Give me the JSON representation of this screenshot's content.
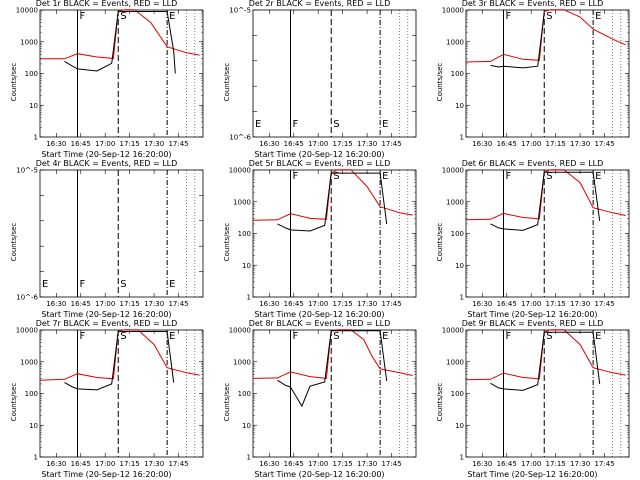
{
  "chart_data": [
    {
      "type": "line",
      "panel": "det1",
      "title": "Det 1r BLACK = Events, RED = LLD",
      "xlabel": "Start Time (20-Sep-12 16:20:00)",
      "ylabel": "Counts/sec",
      "yscale": "log",
      "ylim": [
        1,
        10000
      ],
      "xlim": [
        "16:20",
        "18:00"
      ],
      "xticks": [
        "16:30",
        "16:45",
        "17:00",
        "17:15",
        "17:30",
        "17:45"
      ],
      "yticks": [
        "1",
        "10",
        "100",
        "1000",
        "10000"
      ],
      "markers": [
        {
          "label": "F",
          "time": "16:43"
        },
        {
          "label": "S",
          "time": "17:08"
        },
        {
          "label": "E",
          "time": "17:38"
        }
      ],
      "series": [
        {
          "name": "LLD",
          "color": "#e00000",
          "x": [
            "16:20",
            "16:35",
            "16:43",
            "16:55",
            "17:05",
            "17:08",
            "17:12",
            "17:18",
            "17:28",
            "17:38",
            "17:50",
            "17:58"
          ],
          "values": [
            290,
            290,
            420,
            330,
            300,
            9000,
            14000,
            15000,
            4000,
            700,
            450,
            380
          ]
        },
        {
          "name": "Events",
          "color": "#000000",
          "x": [
            "16:35",
            "16:40",
            "16:43",
            "16:55",
            "17:04",
            "17:08",
            "17:38",
            "17:42",
            "17:43"
          ],
          "values": [
            240,
            170,
            140,
            120,
            210,
            9000,
            9000,
            500,
            100
          ]
        }
      ]
    },
    {
      "type": "line",
      "panel": "det2",
      "title": "Det 2r BLACK = Events, RED = LLD",
      "xlabel": "Start Time (20-Sep-12 16:20:00)",
      "ylabel": "Counts/sec",
      "yscale": "log",
      "ylim": [
        1e-06,
        1e-05
      ],
      "xticks": [
        "16:30",
        "16:45",
        "17:00",
        "17:15",
        "17:30",
        "17:45"
      ],
      "yticks": [
        "10^-6",
        "",
        "",
        "",
        "",
        "10^-5"
      ],
      "markers": [
        {
          "label": "E",
          "time": "16:20"
        },
        {
          "label": "F",
          "time": "16:43"
        },
        {
          "label": "S",
          "time": "17:08"
        },
        {
          "label": "E",
          "time": "17:38"
        }
      ],
      "series": []
    },
    {
      "type": "line",
      "panel": "det3",
      "title": "Det 3r BLACK = Events, RED = LLD",
      "xlabel": "",
      "ylabel": "Counts/sec",
      "yscale": "log",
      "ylim": [
        1,
        10000
      ],
      "xticks": [
        "16:30",
        "16:45",
        "17:00",
        "17:15",
        "17:30",
        "17:45"
      ],
      "yticks": [
        "1",
        "10",
        "100",
        "1000",
        "10000"
      ],
      "markers": [
        {
          "label": "F",
          "time": "16:43"
        },
        {
          "label": "S",
          "time": "17:08"
        },
        {
          "label": "E",
          "time": "17:38"
        }
      ],
      "series": [
        {
          "name": "LLD",
          "color": "#e00000",
          "x": [
            "16:20",
            "16:35",
            "16:43",
            "16:55",
            "17:05",
            "17:08",
            "17:12",
            "17:20",
            "17:30",
            "17:38",
            "17:50",
            "17:58"
          ],
          "values": [
            230,
            240,
            400,
            280,
            260,
            9000,
            12000,
            13000,
            6000,
            2500,
            1200,
            800
          ]
        },
        {
          "name": "Events",
          "color": "#000000",
          "x": [
            "16:35",
            "16:40",
            "16:43",
            "16:55",
            "17:04",
            "17:08"
          ],
          "values": [
            180,
            160,
            170,
            150,
            170,
            8000
          ]
        }
      ]
    },
    {
      "type": "line",
      "panel": "det4",
      "title": "Det 4r BLACK = Events, RED = LLD",
      "xlabel": "Start Time (20-Sep-12 16:20:00)",
      "ylabel": "Counts/sec",
      "yscale": "log",
      "ylim": [
        1e-06,
        1e-05
      ],
      "xticks": [
        "16:30",
        "16:45",
        "17:00",
        "17:15",
        "17:30",
        "17:45"
      ],
      "yticks": [
        "10^-6",
        "",
        "",
        "",
        "",
        "10^-5"
      ],
      "markers": [
        {
          "label": "E",
          "time": "16:20"
        },
        {
          "label": "F",
          "time": "16:43"
        },
        {
          "label": "S",
          "time": "17:08"
        },
        {
          "label": "E",
          "time": "17:38"
        }
      ],
      "series": []
    },
    {
      "type": "line",
      "panel": "det5",
      "title": "Det 5r BLACK = Events, RED = LLD",
      "xlabel": "Start Time (20-Sep-12 16:20:00)",
      "ylabel": "Counts/sec",
      "yscale": "log",
      "ylim": [
        1,
        10000
      ],
      "xticks": [
        "16:30",
        "16:45",
        "17:00",
        "17:15",
        "17:30",
        "17:45"
      ],
      "yticks": [
        "1",
        "10",
        "100",
        "1000",
        "10000"
      ],
      "markers": [
        {
          "label": "F",
          "time": "16:43"
        },
        {
          "label": "S",
          "time": "17:08"
        },
        {
          "label": "E",
          "time": "17:38"
        }
      ],
      "series": [
        {
          "name": "LLD",
          "color": "#e00000",
          "x": [
            "16:20",
            "16:35",
            "16:43",
            "16:55",
            "17:05",
            "17:08",
            "17:12",
            "17:20",
            "17:30",
            "17:38",
            "17:50",
            "17:58"
          ],
          "values": [
            260,
            270,
            420,
            300,
            280,
            8000,
            12000,
            13000,
            3000,
            700,
            450,
            380
          ]
        },
        {
          "name": "Events",
          "color": "#000000",
          "x": [
            "16:35",
            "16:40",
            "16:43",
            "16:55",
            "17:04",
            "17:08",
            "17:38",
            "17:42"
          ],
          "values": [
            200,
            150,
            130,
            120,
            180,
            8000,
            8000,
            200
          ]
        }
      ]
    },
    {
      "type": "line",
      "panel": "det6",
      "title": "Det 6r BLACK = Events, RED = LLD",
      "xlabel": "Start Time (20-Sep-12 16:20:00)",
      "ylabel": "Counts/sec",
      "yscale": "log",
      "ylim": [
        1,
        10000
      ],
      "xticks": [
        "16:30",
        "16:45",
        "17:00",
        "17:15",
        "17:30",
        "17:45"
      ],
      "yticks": [
        "1",
        "10",
        "100",
        "1000",
        "10000"
      ],
      "markers": [
        {
          "label": "F",
          "time": "16:43"
        },
        {
          "label": "S",
          "time": "17:08"
        },
        {
          "label": "E",
          "time": "17:38"
        }
      ],
      "series": [
        {
          "name": "LLD",
          "color": "#e00000",
          "x": [
            "16:20",
            "16:35",
            "16:43",
            "16:55",
            "17:05",
            "17:08",
            "17:12",
            "17:20",
            "17:30",
            "17:38",
            "17:50",
            "17:58"
          ],
          "values": [
            270,
            280,
            430,
            320,
            290,
            8500,
            12500,
            13000,
            4000,
            650,
            450,
            370
          ]
        },
        {
          "name": "Events",
          "color": "#000000",
          "x": [
            "16:35",
            "16:40",
            "16:43",
            "16:55",
            "17:04",
            "17:08",
            "17:38",
            "17:42"
          ],
          "values": [
            200,
            150,
            140,
            125,
            190,
            8500,
            8500,
            250
          ]
        }
      ]
    },
    {
      "type": "line",
      "panel": "det7",
      "title": "Det 7r BLACK = Events, RED = LLD",
      "xlabel": "Start Time (20-Sep-12 16:20:00)",
      "ylabel": "Counts/sec",
      "yscale": "log",
      "ylim": [
        1,
        10000
      ],
      "xticks": [
        "16:30",
        "16:45",
        "17:00",
        "17:15",
        "17:30",
        "17:45"
      ],
      "yticks": [
        "1",
        "10",
        "100",
        "1000",
        "10000"
      ],
      "markers": [
        {
          "label": "F",
          "time": "16:43"
        },
        {
          "label": "S",
          "time": "17:08"
        },
        {
          "label": "E",
          "time": "17:38"
        }
      ],
      "series": [
        {
          "name": "LLD",
          "color": "#e00000",
          "x": [
            "16:20",
            "16:35",
            "16:43",
            "16:55",
            "17:05",
            "17:08",
            "17:12",
            "17:20",
            "17:30",
            "17:38",
            "17:50",
            "17:58"
          ],
          "values": [
            260,
            280,
            420,
            320,
            290,
            9000,
            13000,
            13500,
            3500,
            650,
            450,
            380
          ]
        },
        {
          "name": "Events",
          "color": "#000000",
          "x": [
            "16:35",
            "16:40",
            "16:43",
            "16:55",
            "17:04",
            "17:08",
            "17:38",
            "17:42"
          ],
          "values": [
            220,
            160,
            140,
            130,
            200,
            9000,
            9000,
            220
          ]
        }
      ]
    },
    {
      "type": "line",
      "panel": "det8",
      "title": "Det 8r BLACK = Events, RED = LLD",
      "xlabel": "Start Time (20-Sep-12 16:20:00)",
      "ylabel": "Counts/sec",
      "yscale": "log",
      "ylim": [
        1,
        10000
      ],
      "xticks": [
        "16:30",
        "16:45",
        "17:00",
        "17:15",
        "17:30",
        "17:45"
      ],
      "yticks": [
        "1",
        "10",
        "100",
        "1000",
        "10000"
      ],
      "markers": [
        {
          "label": "F",
          "time": "16:43"
        },
        {
          "label": "S",
          "time": "17:08"
        },
        {
          "label": "E",
          "time": "17:38"
        }
      ],
      "series": [
        {
          "name": "LLD",
          "color": "#e00000",
          "x": [
            "16:20",
            "16:35",
            "16:43",
            "16:55",
            "17:05",
            "17:08",
            "17:12",
            "17:20",
            "17:28",
            "17:33",
            "17:38",
            "17:50",
            "17:58"
          ],
          "values": [
            300,
            310,
            480,
            340,
            300,
            9500,
            14000,
            12000,
            5000,
            1500,
            600,
            450,
            370
          ]
        },
        {
          "name": "Events",
          "color": "#000000",
          "x": [
            "16:35",
            "16:40",
            "16:43",
            "16:50",
            "16:55",
            "17:04",
            "17:08",
            "17:38",
            "17:42"
          ],
          "values": [
            260,
            180,
            160,
            40,
            170,
            230,
            9500,
            9500,
            250
          ]
        }
      ]
    },
    {
      "type": "line",
      "panel": "det9",
      "title": "Det 9r BLACK = Events, RED = LLD",
      "xlabel": "Start Time (20-Sep-12 16:20:00)",
      "ylabel": "Counts/sec",
      "yscale": "log",
      "ylim": [
        1,
        10000
      ],
      "xticks": [
        "16:30",
        "16:45",
        "17:00",
        "17:15",
        "17:30",
        "17:45"
      ],
      "yticks": [
        "1",
        "10",
        "100",
        "1000",
        "10000"
      ],
      "markers": [
        {
          "label": "F",
          "time": "16:43"
        },
        {
          "label": "S",
          "time": "17:08"
        },
        {
          "label": "E",
          "time": "17:38"
        }
      ],
      "series": [
        {
          "name": "LLD",
          "color": "#e00000",
          "x": [
            "16:20",
            "16:35",
            "16:43",
            "16:55",
            "17:05",
            "17:08",
            "17:12",
            "17:20",
            "17:30",
            "17:38",
            "17:50",
            "17:58"
          ],
          "values": [
            270,
            280,
            440,
            320,
            290,
            8500,
            12500,
            13000,
            3500,
            650,
            450,
            380
          ]
        },
        {
          "name": "Events",
          "color": "#000000",
          "x": [
            "16:35",
            "16:40",
            "16:43",
            "16:55",
            "17:04",
            "17:08",
            "17:38",
            "17:42"
          ],
          "values": [
            210,
            150,
            140,
            125,
            190,
            8500,
            8500,
            200
          ]
        }
      ]
    }
  ]
}
